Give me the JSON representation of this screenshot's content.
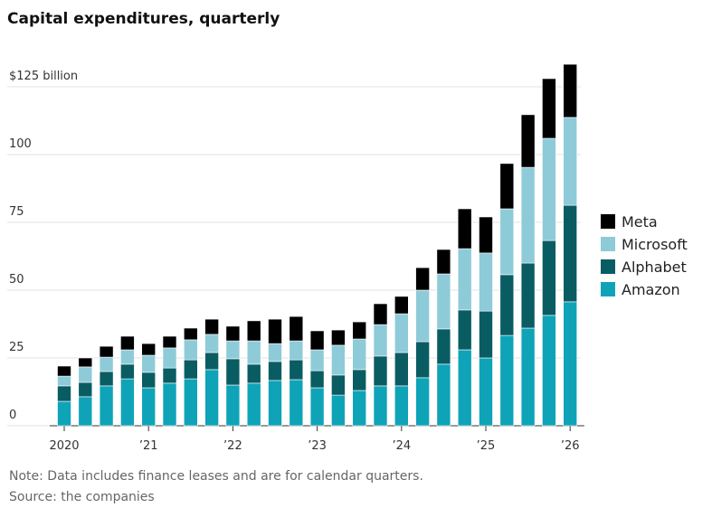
{
  "chart_data": {
    "type": "stacked_bar",
    "title": "Capital expenditures, quarterly",
    "note": "Note: Data includes finance leases and are for calendar quarters.",
    "source": "Source: the companies",
    "categories": [
      "2020",
      null,
      null,
      null,
      "’21",
      null,
      null,
      null,
      "’22",
      null,
      null,
      null,
      "’23",
      null,
      null,
      null,
      "’24",
      null,
      null,
      null,
      "’25",
      null,
      null,
      null,
      "’26"
    ],
    "series": [
      {
        "name": "Amazon",
        "color": "#0fa3b8",
        "values": [
          9,
          10.7,
          14.7,
          17.3,
          14,
          15.7,
          17.3,
          20.7,
          15,
          15.7,
          16.7,
          17,
          14,
          11.3,
          13,
          14.7,
          14.7,
          17.7,
          22.7,
          28,
          25,
          33.3,
          36,
          40.7,
          45.7
        ]
      },
      {
        "name": "Alphabet",
        "color": "#0a5c63",
        "values": [
          5.7,
          5.3,
          5.3,
          5.4,
          5.7,
          5.6,
          7,
          6.3,
          9.7,
          7,
          7,
          7.3,
          6.3,
          7.4,
          7.7,
          11,
          12.3,
          13.3,
          13,
          14.7,
          17.3,
          22.4,
          24,
          27.6,
          35.6
        ]
      },
      {
        "name": "Microsoft",
        "color": "#8ecbd8",
        "values": [
          3.6,
          5.7,
          5.3,
          5.3,
          6.3,
          7.4,
          7.4,
          6.7,
          6.6,
          8.6,
          6.6,
          7,
          7.7,
          11,
          11.3,
          11.6,
          14.3,
          19,
          20.3,
          22.6,
          21.4,
          24.3,
          35.3,
          37.7,
          32.4
        ]
      },
      {
        "name": "Meta",
        "color": "#000000",
        "values": [
          3.7,
          3.3,
          4,
          5,
          4.3,
          4.3,
          4.3,
          5.6,
          5.4,
          7.4,
          9,
          9,
          7,
          5.6,
          6.3,
          7.7,
          6.4,
          8.3,
          9,
          14.7,
          13.3,
          16.7,
          19.4,
          22,
          19.6
        ]
      }
    ],
    "ylim": [
      0,
      135
    ],
    "yticks": [
      0,
      25,
      50,
      75,
      100,
      {
        "value": 125,
        "label": "$125 billion"
      }
    ],
    "grid": true
  }
}
